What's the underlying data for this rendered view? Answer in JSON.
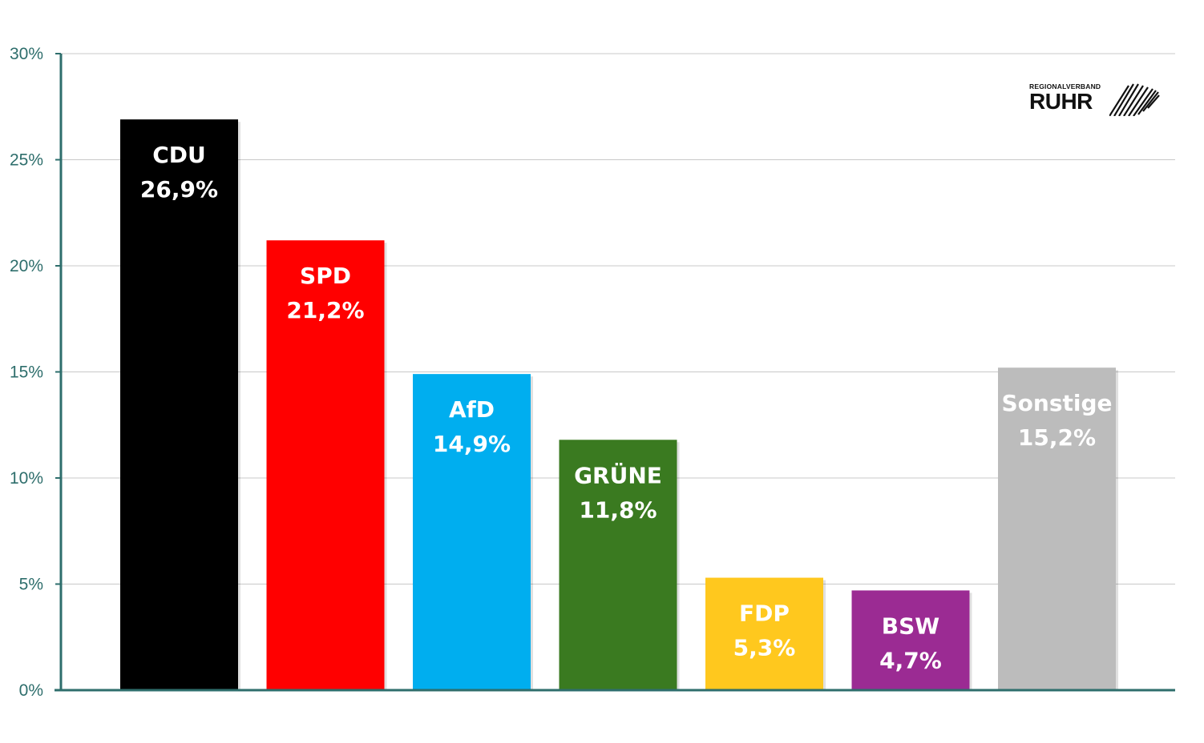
{
  "chart_data": {
    "type": "bar",
    "categories": [
      "CDU",
      "SPD",
      "AfD",
      "GRÜNE",
      "FDP",
      "BSW",
      "Sonstige"
    ],
    "values": [
      26.9,
      21.2,
      14.9,
      11.8,
      5.3,
      4.7,
      15.2
    ],
    "value_labels": [
      "26,9%",
      "21,2%",
      "14,9%",
      "11,8%",
      "5,3%",
      "4,7%",
      "15,2%"
    ],
    "colors": [
      "#000000",
      "#ff0000",
      "#00aeef",
      "#3a7a20",
      "#ffc81e",
      "#9b2b93",
      "#bcbcbc"
    ],
    "yticks": [
      "0%",
      "5%",
      "10%",
      "15%",
      "20%",
      "25%",
      "30%"
    ],
    "ytick_values": [
      0,
      5,
      10,
      15,
      20,
      25,
      30
    ],
    "ylim": [
      0,
      30
    ],
    "grid": true,
    "axis_color": "#2e6e6c"
  },
  "logo": {
    "small_text": "REGIONALVERBAND",
    "big_text": "RUHR"
  }
}
